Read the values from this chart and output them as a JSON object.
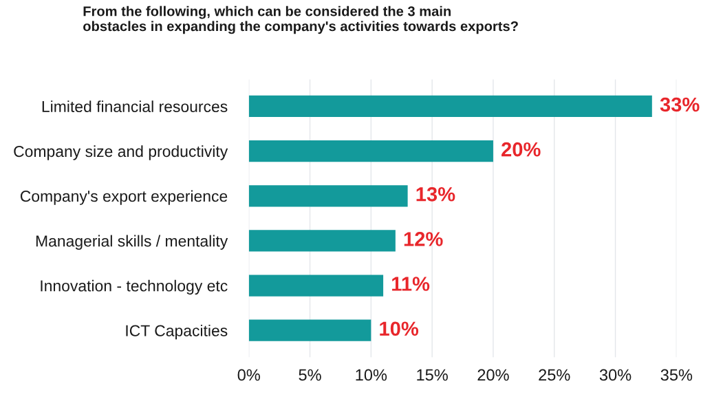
{
  "chart_data": {
    "type": "bar",
    "orientation": "horizontal",
    "title": "From the following, which can be considered the 3 main\nobstacles in expanding the company's activities towards exports?",
    "categories": [
      "Limited financial resources",
      "Company size and productivity",
      "Company's export experience",
      "Managerial skills / mentality",
      "Innovation - technology etc",
      "ICT Capacities"
    ],
    "values": [
      33,
      20,
      13,
      12,
      11,
      10
    ],
    "value_labels": [
      "33%",
      "20%",
      "13%",
      "12%",
      "11%",
      "10%"
    ],
    "color": "#139a9b",
    "xlim": [
      0,
      35
    ],
    "xticks": [
      {
        "value": 0,
        "label": "0%"
      },
      {
        "value": 5,
        "label": "5%"
      },
      {
        "value": 10,
        "label": "10%"
      },
      {
        "value": 15,
        "label": "15%"
      },
      {
        "value": 20,
        "label": "20%"
      },
      {
        "value": 25,
        "label": "25%"
      },
      {
        "value": 30,
        "label": "30%"
      },
      {
        "value": 35,
        "label": "35%"
      }
    ],
    "grid": "x"
  }
}
